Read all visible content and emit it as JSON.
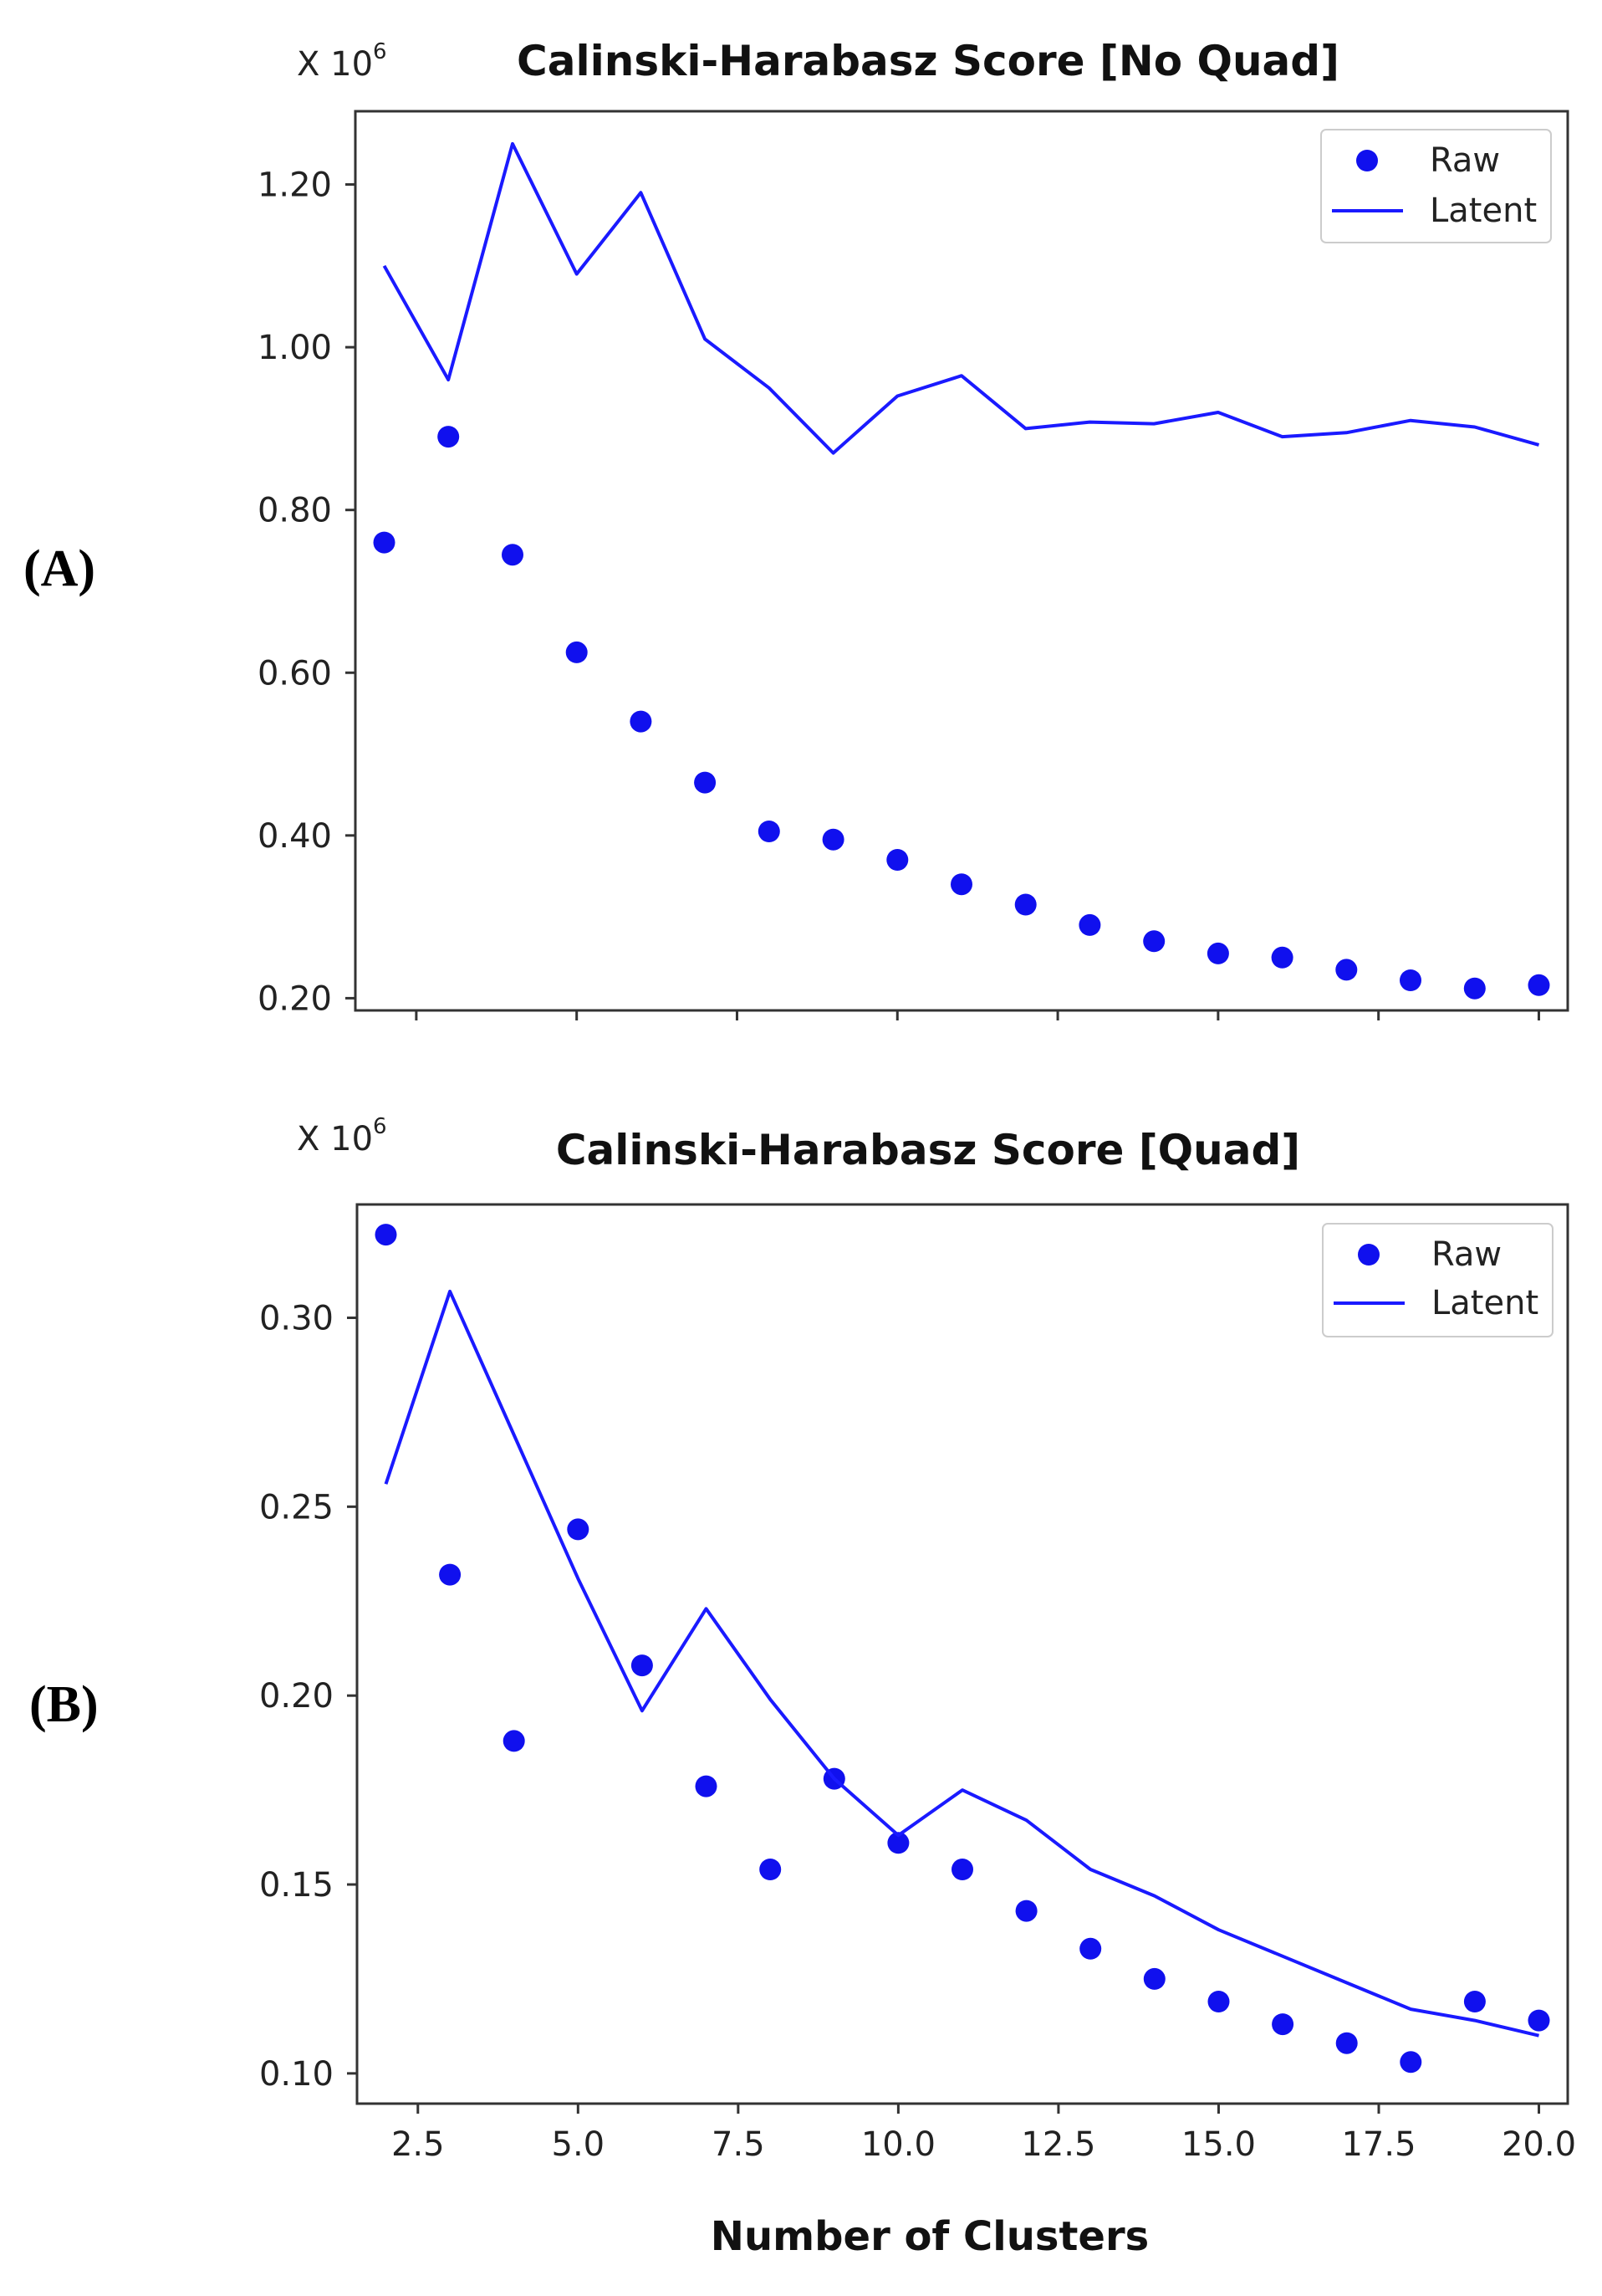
{
  "figure": {
    "shared_xlabel": "Number of Clusters"
  },
  "chart_data": [
    {
      "type": "line+scatter",
      "panel_label": "(A)",
      "title": "Calinski-Harabasz Score [No Quad]",
      "multiplier": "X 10",
      "multiplier_exp": "6",
      "xlabel": "Number of Clusters",
      "ylabel": "",
      "xlim": [
        1.55,
        20.45
      ],
      "ylim": [
        0.185,
        1.29
      ],
      "x_ticks": [
        2.5,
        5.0,
        7.5,
        10.0,
        12.5,
        15.0,
        17.5,
        20.0
      ],
      "x_tick_labels": [
        "2.5",
        "5.0",
        "7.5",
        "10.0",
        "12.5",
        "15.0",
        "17.5",
        "20.0"
      ],
      "show_x_tick_labels": false,
      "y_ticks": [
        0.2,
        0.4,
        0.6,
        0.8,
        1.0,
        1.2
      ],
      "y_tick_labels": [
        "0.20",
        "0.40",
        "0.60",
        "0.80",
        "1.00",
        "1.20"
      ],
      "legend": {
        "position": "top-right",
        "entries": [
          "Raw",
          "Latent"
        ]
      },
      "series": [
        {
          "name": "Raw",
          "style": "scatter",
          "color": "#1010ee",
          "x": [
            2,
            3,
            4,
            5,
            6,
            7,
            8,
            9,
            10,
            11,
            12,
            13,
            14,
            15,
            16,
            17,
            18,
            19,
            20
          ],
          "values": [
            0.76,
            0.89,
            0.745,
            0.625,
            0.54,
            0.465,
            0.405,
            0.395,
            0.37,
            0.34,
            0.315,
            0.29,
            0.27,
            0.255,
            0.25,
            0.235,
            0.222,
            0.212,
            0.216
          ]
        },
        {
          "name": "Latent",
          "style": "line",
          "color": "#1a1aff",
          "x": [
            2,
            3,
            4,
            5,
            6,
            7,
            8,
            9,
            10,
            11,
            12,
            13,
            14,
            15,
            16,
            17,
            18,
            19,
            20
          ],
          "values": [
            1.1,
            0.96,
            1.25,
            1.09,
            1.19,
            1.01,
            0.95,
            0.87,
            0.94,
            0.965,
            0.9,
            0.908,
            0.906,
            0.92,
            0.89,
            0.895,
            0.91,
            0.902,
            0.88
          ]
        }
      ]
    },
    {
      "type": "line+scatter",
      "panel_label": "(B)",
      "title": "Calinski-Harabasz Score [Quad]",
      "multiplier": "X 10",
      "multiplier_exp": "6",
      "xlabel": "Number of Clusters",
      "ylabel": "",
      "xlim": [
        1.55,
        20.45
      ],
      "ylim": [
        0.092,
        0.33
      ],
      "x_ticks": [
        2.5,
        5.0,
        7.5,
        10.0,
        12.5,
        15.0,
        17.5,
        20.0
      ],
      "x_tick_labels": [
        "2.5",
        "5.0",
        "7.5",
        "10.0",
        "12.5",
        "15.0",
        "17.5",
        "20.0"
      ],
      "show_x_tick_labels": true,
      "y_ticks": [
        0.1,
        0.15,
        0.2,
        0.25,
        0.3
      ],
      "y_tick_labels": [
        "0.10",
        "0.15",
        "0.20",
        "0.25",
        "0.30"
      ],
      "legend": {
        "position": "top-right",
        "entries": [
          "Raw",
          "Latent"
        ]
      },
      "series": [
        {
          "name": "Raw",
          "style": "scatter",
          "color": "#1010ee",
          "x": [
            2,
            3,
            4,
            5,
            6,
            7,
            8,
            9,
            10,
            11,
            12,
            13,
            14,
            15,
            16,
            17,
            18,
            19,
            20
          ],
          "values": [
            0.322,
            0.232,
            0.188,
            0.244,
            0.208,
            0.176,
            0.154,
            0.178,
            0.161,
            0.154,
            0.143,
            0.133,
            0.125,
            0.119,
            0.113,
            0.108,
            0.103,
            0.119,
            0.114
          ]
        },
        {
          "name": "Latent",
          "style": "line",
          "color": "#1a1aff",
          "x": [
            2,
            3,
            4,
            5,
            6,
            7,
            8,
            9,
            10,
            11,
            12,
            13,
            14,
            15,
            16,
            17,
            18,
            19,
            20
          ],
          "values": [
            0.256,
            0.307,
            0.269,
            0.231,
            0.196,
            0.223,
            0.199,
            0.178,
            0.163,
            0.175,
            0.167,
            0.154,
            0.147,
            0.138,
            0.131,
            0.124,
            0.117,
            0.114,
            0.11
          ]
        }
      ]
    }
  ]
}
